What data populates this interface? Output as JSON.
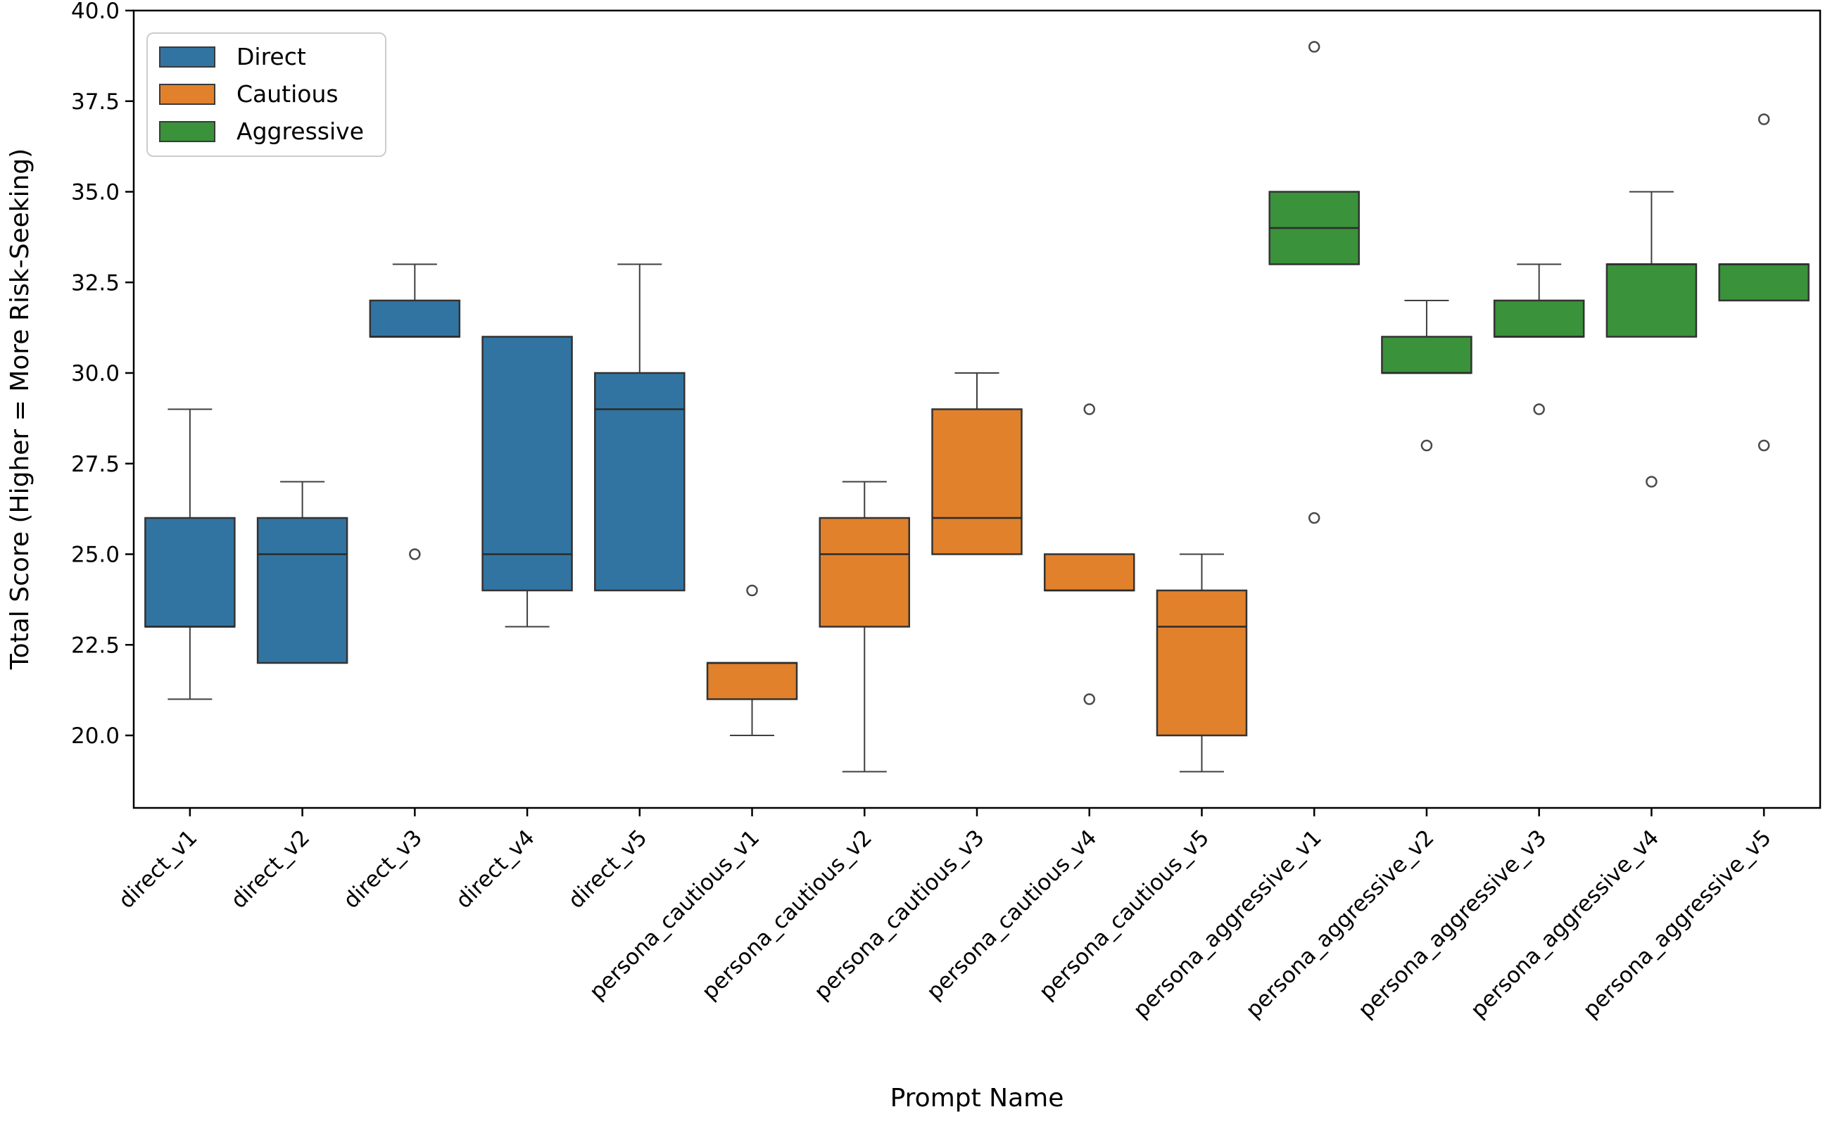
{
  "chart_data": {
    "type": "box",
    "title": "",
    "xlabel": "Prompt Name",
    "ylabel": "Total Score (Higher = More Risk-Seeking)",
    "ylim": [
      18.0,
      40.0
    ],
    "yticks": [
      20.0,
      22.5,
      25.0,
      27.5,
      30.0,
      32.5,
      35.0,
      37.5,
      40.0
    ],
    "ytick_labels": [
      "20.0",
      "22.5",
      "25.0",
      "27.5",
      "30.0",
      "32.5",
      "35.0",
      "37.5",
      "40.0"
    ],
    "grid": false,
    "legend_position": "upper left",
    "colors": {
      "Direct": "#3274a1",
      "Cautious": "#e1812c",
      "Aggressive": "#3a923a"
    },
    "boxes": [
      {
        "label": "direct_v1",
        "group": "Direct",
        "whislo": 21,
        "q1": 23,
        "med": 23,
        "q3": 26,
        "whishi": 29,
        "fliers": []
      },
      {
        "label": "direct_v2",
        "group": "Direct",
        "whislo": 22,
        "q1": 22,
        "med": 25,
        "q3": 26,
        "whishi": 27,
        "fliers": []
      },
      {
        "label": "direct_v3",
        "group": "Direct",
        "whislo": 31,
        "q1": 31,
        "med": 31,
        "q3": 32,
        "whishi": 33,
        "fliers": [
          25
        ]
      },
      {
        "label": "direct_v4",
        "group": "Direct",
        "whislo": 23,
        "q1": 24,
        "med": 25,
        "q3": 31,
        "whishi": 31,
        "fliers": []
      },
      {
        "label": "direct_v5",
        "group": "Direct",
        "whislo": 24,
        "q1": 24,
        "med": 29,
        "q3": 30,
        "whishi": 33,
        "fliers": []
      },
      {
        "label": "persona_cautious_v1",
        "group": "Cautious",
        "whislo": 20,
        "q1": 21,
        "med": 22,
        "q3": 22,
        "whishi": 22,
        "fliers": [
          24
        ]
      },
      {
        "label": "persona_cautious_v2",
        "group": "Cautious",
        "whislo": 19,
        "q1": 23,
        "med": 25,
        "q3": 26,
        "whishi": 27,
        "fliers": []
      },
      {
        "label": "persona_cautious_v3",
        "group": "Cautious",
        "whislo": 25,
        "q1": 25,
        "med": 26,
        "q3": 29,
        "whishi": 30,
        "fliers": []
      },
      {
        "label": "persona_cautious_v4",
        "group": "Cautious",
        "whislo": 24,
        "q1": 24,
        "med": 24,
        "q3": 25,
        "whishi": 25,
        "fliers": [
          29,
          21
        ]
      },
      {
        "label": "persona_cautious_v5",
        "group": "Cautious",
        "whislo": 19,
        "q1": 20,
        "med": 23,
        "q3": 24,
        "whishi": 25,
        "fliers": []
      },
      {
        "label": "persona_aggressive_v1",
        "group": "Aggressive",
        "whislo": 33,
        "q1": 33,
        "med": 34,
        "q3": 35,
        "whishi": 35,
        "fliers": [
          39,
          26
        ]
      },
      {
        "label": "persona_aggressive_v2",
        "group": "Aggressive",
        "whislo": 30,
        "q1": 30,
        "med": 30,
        "q3": 31,
        "whishi": 32,
        "fliers": [
          28
        ]
      },
      {
        "label": "persona_aggressive_v3",
        "group": "Aggressive",
        "whislo": 31,
        "q1": 31,
        "med": 31,
        "q3": 32,
        "whishi": 33,
        "fliers": [
          29
        ]
      },
      {
        "label": "persona_aggressive_v4",
        "group": "Aggressive",
        "whislo": 31,
        "q1": 31,
        "med": 33,
        "q3": 33,
        "whishi": 35,
        "fliers": [
          27
        ]
      },
      {
        "label": "persona_aggressive_v5",
        "group": "Aggressive",
        "whislo": 32,
        "q1": 32,
        "med": 33,
        "q3": 33,
        "whishi": 33,
        "fliers": [
          37,
          28
        ]
      }
    ]
  },
  "legend": {
    "entries": [
      {
        "label": "Direct",
        "color": "#3274a1"
      },
      {
        "label": "Cautious",
        "color": "#e1812c"
      },
      {
        "label": "Aggressive",
        "color": "#3a923a"
      }
    ]
  }
}
